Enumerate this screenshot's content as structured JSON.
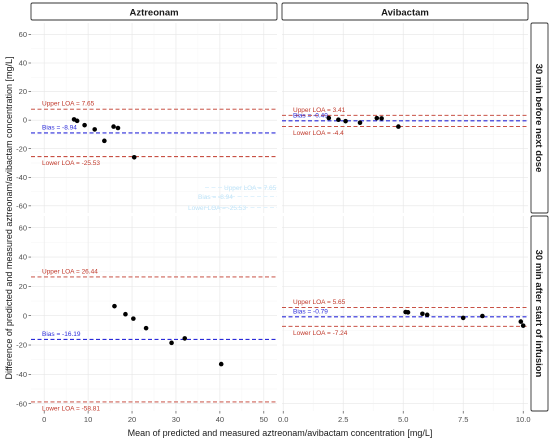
{
  "chart_data": {
    "type": "scatter",
    "xlabel": "Mean of predicted and measured aztreonam/avibactam concentration [mg/L]",
    "ylabel": "Difference of predicted and measured aztreonam/avibactam concentration [mg/L]",
    "columns": [
      "Aztreonam",
      "Avibactam"
    ],
    "rows": [
      "30 min before next dose",
      "30 min after start of infusion"
    ],
    "ylim": [
      -65,
      68
    ],
    "y_ticks": [
      -60,
      -40,
      -20,
      0,
      20,
      40,
      60
    ],
    "xlim_by_column": {
      "Aztreonam": [
        -3,
        53
      ],
      "Avibactam": [
        -0.05,
        10.2
      ]
    },
    "x_ticks_by_column": {
      "Aztreonam": [
        0,
        10,
        20,
        30,
        40,
        50
      ],
      "Avibactam": [
        0.0,
        2.5,
        5.0,
        7.5,
        10.0
      ]
    },
    "x_tick_labels_by_column": {
      "Aztreonam": [
        "0",
        "10",
        "20",
        "30",
        "40",
        "50"
      ],
      "Avibactam": [
        "0.0",
        "2.5",
        "5.0",
        "7.5",
        "10.0"
      ]
    },
    "colors": {
      "loa": "#c0392b",
      "bias": "#2b2bd9",
      "points": "#000000",
      "strip_fill": "#ffffff",
      "strip_border": "#333333"
    },
    "panels": [
      {
        "column": "Aztreonam",
        "row": "30 min before next dose",
        "upper_loa": 7.65,
        "bias": -8.94,
        "lower_loa": -25.53,
        "upper_label": "Upper LOA = 7.65",
        "bias_label": "Bias = -8.94",
        "lower_label": "Lower LOA = -25.53",
        "points": [
          [
            6.8,
            0.5
          ],
          [
            7.5,
            -0.5
          ],
          [
            9.2,
            -3.5
          ],
          [
            11.5,
            -6.5
          ],
          [
            13.7,
            -14.5
          ],
          [
            15.8,
            -4.5
          ],
          [
            16.8,
            -5.5
          ],
          [
            20.5,
            -26.0
          ]
        ]
      },
      {
        "column": "Avibactam",
        "row": "30 min before next dose",
        "upper_loa": 3.41,
        "bias": -0.49,
        "lower_loa": -4.4,
        "upper_label": "Upper LOA = 3.41",
        "bias_label": "Bias = -0.49",
        "lower_label": "Lower LOA = -4.4",
        "points": [
          [
            1.9,
            1.5
          ],
          [
            2.3,
            0.3
          ],
          [
            2.6,
            -0.7
          ],
          [
            3.2,
            -1.8
          ],
          [
            3.9,
            1.4
          ],
          [
            4.1,
            1.2
          ],
          [
            4.8,
            -4.5
          ]
        ]
      },
      {
        "column": "Aztreonam",
        "row": "30 min after start of infusion",
        "upper_loa": 26.44,
        "bias": -16.19,
        "lower_loa": -58.81,
        "upper_label": "Upper LOA = 26.44",
        "bias_label": "Bias = -16.19",
        "lower_label": "Lower LOA = -58.81",
        "points": [
          [
            16.0,
            6.5
          ],
          [
            18.5,
            1.0
          ],
          [
            20.3,
            -2.0
          ],
          [
            23.2,
            -8.5
          ],
          [
            29.0,
            -18.5
          ],
          [
            32.0,
            -15.5
          ],
          [
            40.3,
            -33.0
          ]
        ]
      },
      {
        "column": "Avibactam",
        "row": "30 min after start of infusion",
        "upper_loa": 5.65,
        "bias": -0.79,
        "lower_loa": -7.24,
        "upper_label": "Upper LOA = 5.65",
        "bias_label": "Bias = -0.79",
        "lower_label": "Lower LOA = -7.24",
        "points": [
          [
            5.1,
            2.5
          ],
          [
            5.2,
            2.3
          ],
          [
            5.8,
            1.3
          ],
          [
            6.0,
            0.6
          ],
          [
            7.5,
            -1.5
          ],
          [
            8.3,
            -0.2
          ],
          [
            9.9,
            -4.0
          ],
          [
            10.0,
            -6.8
          ]
        ]
      }
    ],
    "stray_faint_labels": [
      "Upper LOA = 7.65",
      "Bias = -8.94",
      "Lower LOA = -25.53"
    ]
  }
}
